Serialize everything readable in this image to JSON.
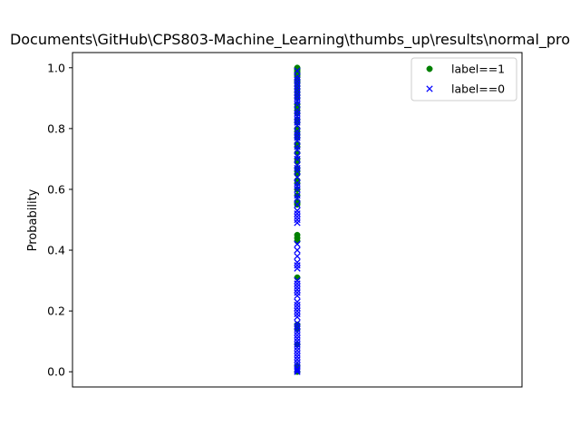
{
  "chart_data": {
    "type": "scatter",
    "title": "Documents\\GitHub\\CPS803-Machine_Learning\\thumbs_up\\results\\normal_pro",
    "xlabel": "",
    "ylabel": "Probability",
    "ylim": [
      -0.05,
      1.05
    ],
    "yticks": [
      "0.0",
      "0.2",
      "0.4",
      "0.6",
      "0.8",
      "1.0"
    ],
    "show_xticks": false,
    "grid": false,
    "legend_position": "top-right",
    "series": [
      {
        "name": "label==1",
        "marker": "circle",
        "color": "#008000",
        "x": 0,
        "values": [
          1.0,
          0.998,
          0.995,
          0.99,
          0.985,
          0.98,
          0.975,
          0.97,
          0.96,
          0.955,
          0.95,
          0.94,
          0.93,
          0.92,
          0.91,
          0.9,
          0.88,
          0.87,
          0.86,
          0.85,
          0.83,
          0.82,
          0.8,
          0.79,
          0.78,
          0.77,
          0.75,
          0.74,
          0.72,
          0.7,
          0.69,
          0.67,
          0.66,
          0.65,
          0.63,
          0.62,
          0.6,
          0.58,
          0.56,
          0.555,
          0.55,
          0.45,
          0.44,
          0.43,
          0.31,
          0.155,
          0.14,
          0.09,
          0.02,
          0.0
        ]
      },
      {
        "name": "label==0",
        "marker": "x",
        "color": "#0000ff",
        "x": 0,
        "values": [
          0.99,
          0.97,
          0.96,
          0.95,
          0.94,
          0.93,
          0.92,
          0.91,
          0.9,
          0.89,
          0.88,
          0.86,
          0.85,
          0.84,
          0.83,
          0.82,
          0.81,
          0.79,
          0.78,
          0.77,
          0.76,
          0.74,
          0.73,
          0.71,
          0.7,
          0.68,
          0.67,
          0.66,
          0.64,
          0.62,
          0.61,
          0.6,
          0.58,
          0.57,
          0.55,
          0.53,
          0.52,
          0.51,
          0.5,
          0.49,
          0.42,
          0.4,
          0.38,
          0.36,
          0.35,
          0.34,
          0.3,
          0.29,
          0.28,
          0.27,
          0.26,
          0.25,
          0.23,
          0.22,
          0.21,
          0.2,
          0.19,
          0.18,
          0.16,
          0.15,
          0.14,
          0.13,
          0.12,
          0.11,
          0.1,
          0.09,
          0.08,
          0.07,
          0.06,
          0.05,
          0.04,
          0.03,
          0.02,
          0.01,
          0.005,
          0.0
        ]
      }
    ]
  }
}
